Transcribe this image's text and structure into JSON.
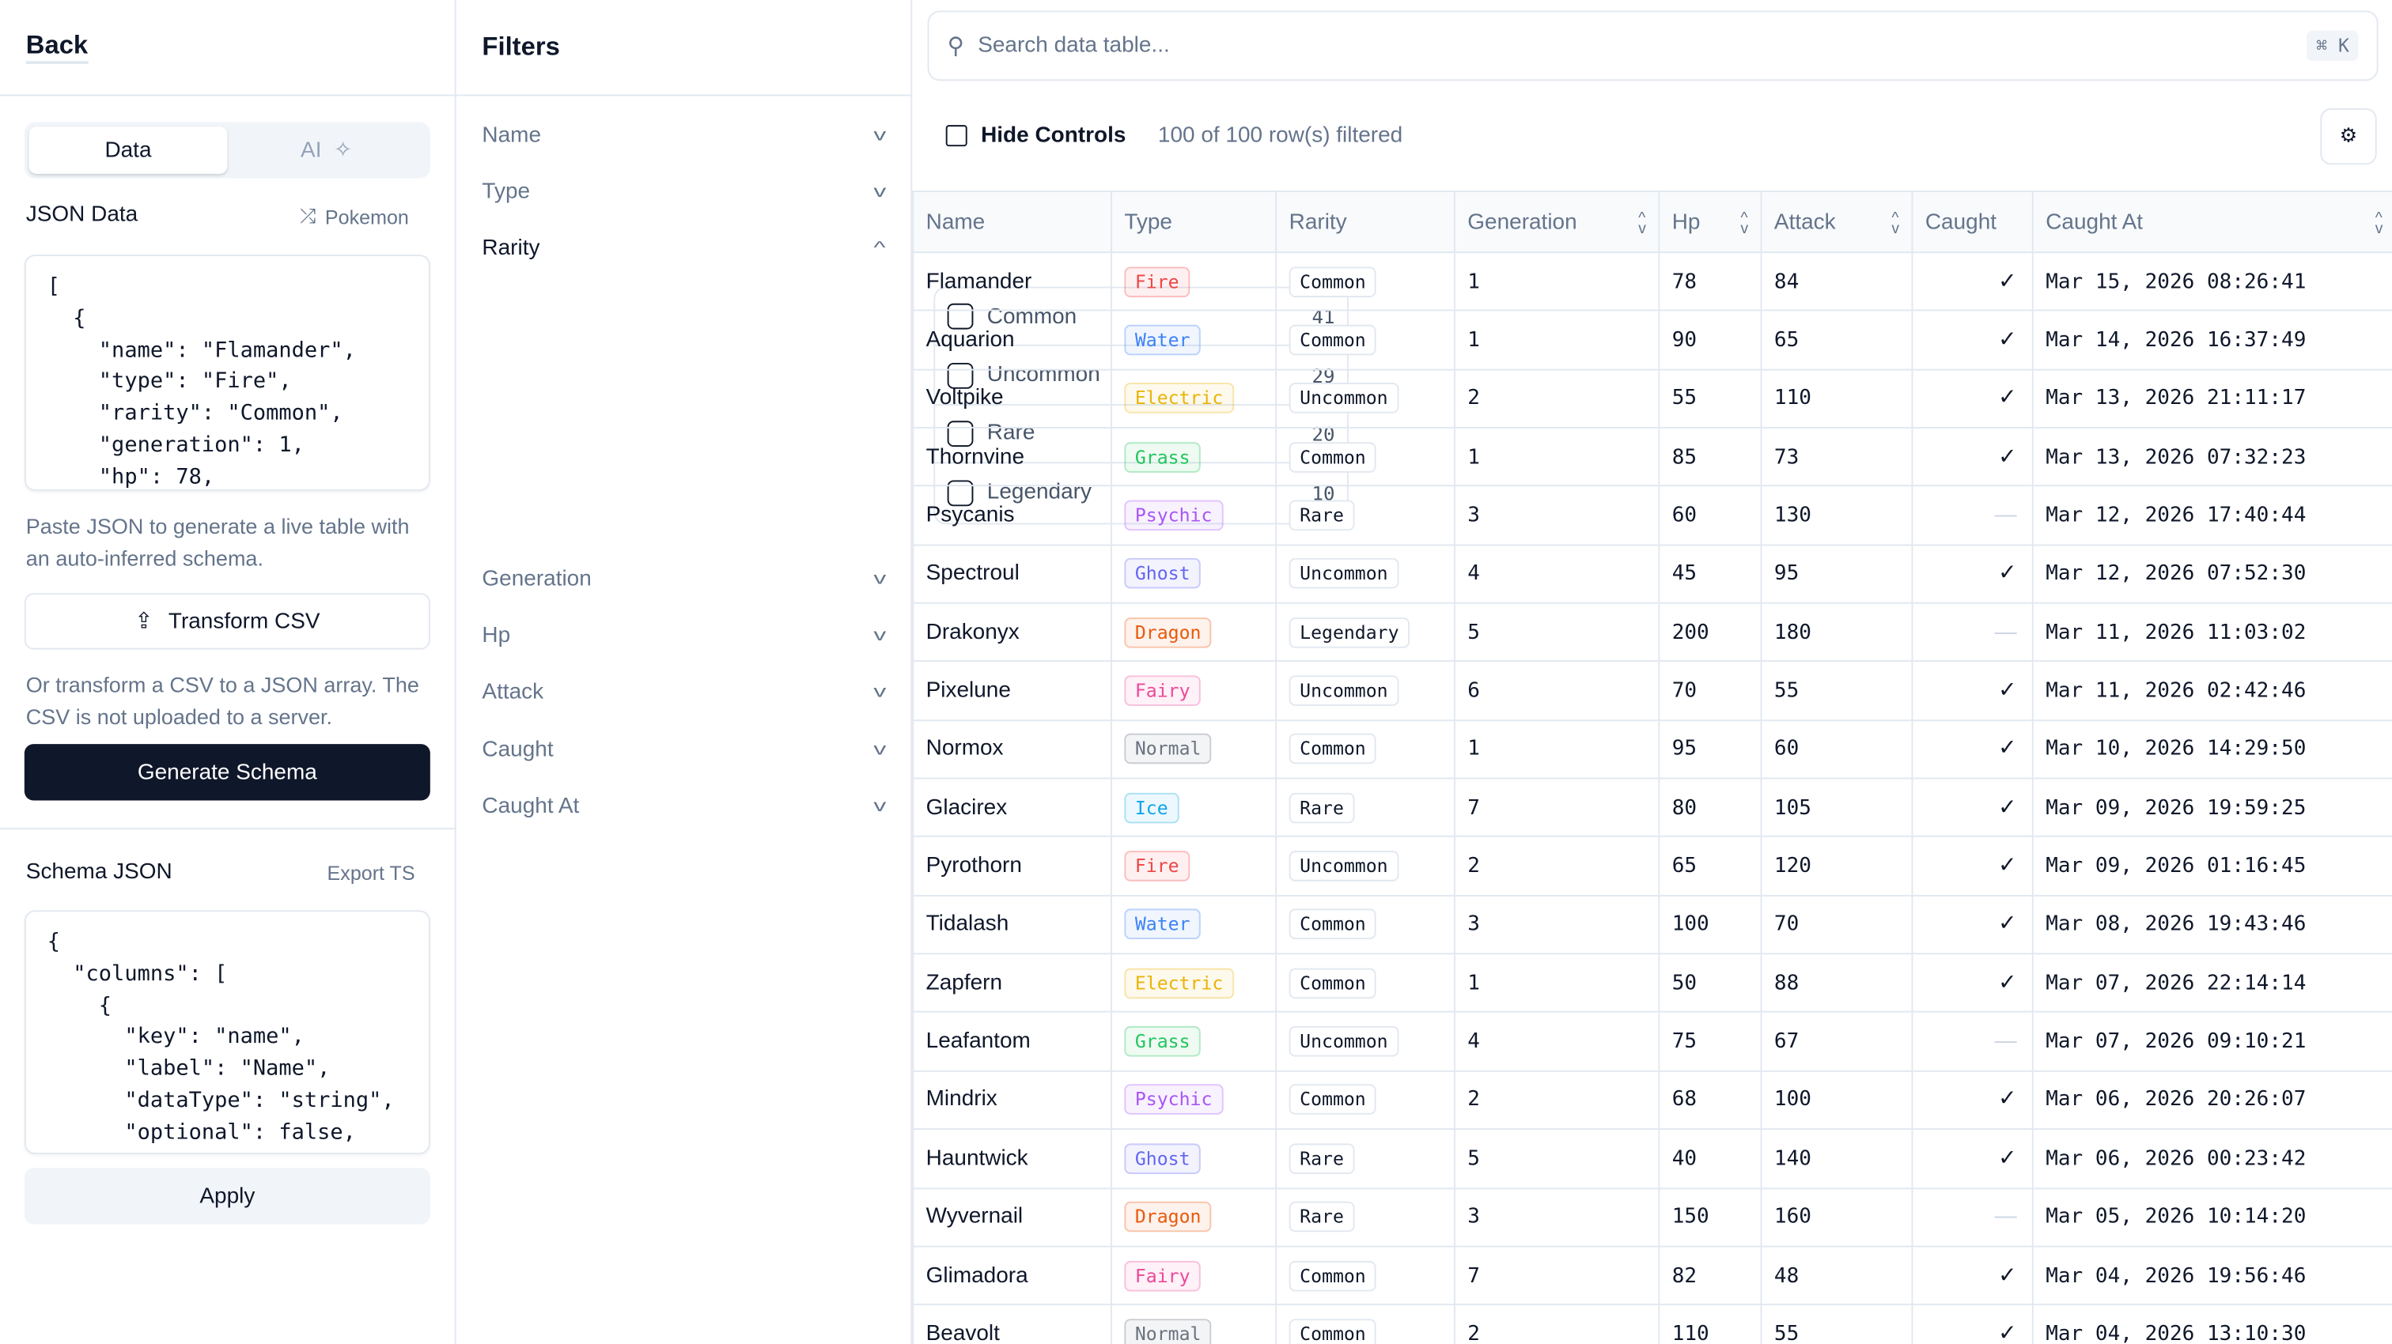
{
  "left": {
    "back": "Back",
    "tabs": {
      "data": "Data",
      "ai": "AI"
    },
    "json_label": "JSON Data",
    "sample_link": "Pokemon",
    "json_text": "[\n  {\n    \"name\": \"Flamander\",\n    \"type\": \"Fire\",\n    \"rarity\": \"Common\",\n    \"generation\": 1,\n    \"hp\": 78,",
    "paste_help": "Paste JSON to generate a live table with an auto-inferred schema.",
    "transform_csv": "Transform CSV",
    "csv_help": "Or transform a CSV to a JSON array. The CSV is not uploaded to a server.",
    "generate": "Generate Schema",
    "schema_label": "Schema JSON",
    "export": "Export TS",
    "schema_text": "{\n  \"columns\": [\n    {\n      \"key\": \"name\",\n      \"label\": \"Name\",\n      \"dataType\": \"string\",\n      \"optional\": false,",
    "apply": "Apply"
  },
  "filters": {
    "title": "Filters",
    "items": [
      "Name",
      "Type",
      "Rarity",
      "Generation",
      "Hp",
      "Attack",
      "Caught",
      "Caught At"
    ],
    "rarity_options": [
      {
        "label": "Common",
        "count": "41"
      },
      {
        "label": "Uncommon",
        "count": "29"
      },
      {
        "label": "Rare",
        "count": "20"
      },
      {
        "label": "Legendary",
        "count": "10"
      }
    ]
  },
  "main": {
    "search_placeholder": "Search data table...",
    "shortcut": "⌘ K",
    "hide_controls": "Hide Controls",
    "row_count": "100 of 100 row(s) filtered",
    "columns": [
      "Name",
      "Type",
      "Rarity",
      "Generation",
      "Hp",
      "Attack",
      "Caught",
      "Caught At"
    ],
    "type_colors": {
      "Fire": "#ef4444",
      "Water": "#3b82f6",
      "Electric": "#eab308",
      "Grass": "#22c55e",
      "Psychic": "#a855f7",
      "Ghost": "#6366f1",
      "Dragon": "#ea580c",
      "Fairy": "#ec4899",
      "Normal": "#6b7280",
      "Ice": "#0ea5e9"
    },
    "rows": [
      [
        "Flamander",
        "Fire",
        "Common",
        "1",
        "78",
        "84",
        true,
        "Mar 15, 2026 08:26:41"
      ],
      [
        "Aquarion",
        "Water",
        "Common",
        "1",
        "90",
        "65",
        true,
        "Mar 14, 2026 16:37:49"
      ],
      [
        "Voltpike",
        "Electric",
        "Uncommon",
        "2",
        "55",
        "110",
        true,
        "Mar 13, 2026 21:11:17"
      ],
      [
        "Thornvine",
        "Grass",
        "Common",
        "1",
        "85",
        "73",
        true,
        "Mar 13, 2026 07:32:23"
      ],
      [
        "Psycanis",
        "Psychic",
        "Rare",
        "3",
        "60",
        "130",
        false,
        "Mar 12, 2026 17:40:44"
      ],
      [
        "Spectroul",
        "Ghost",
        "Uncommon",
        "4",
        "45",
        "95",
        true,
        "Mar 12, 2026 07:52:30"
      ],
      [
        "Drakonyx",
        "Dragon",
        "Legendary",
        "5",
        "200",
        "180",
        false,
        "Mar 11, 2026 11:03:02"
      ],
      [
        "Pixelune",
        "Fairy",
        "Uncommon",
        "6",
        "70",
        "55",
        true,
        "Mar 11, 2026 02:42:46"
      ],
      [
        "Normox",
        "Normal",
        "Common",
        "1",
        "95",
        "60",
        true,
        "Mar 10, 2026 14:29:50"
      ],
      [
        "Glacirex",
        "Ice",
        "Rare",
        "7",
        "80",
        "105",
        true,
        "Mar 09, 2026 19:59:25"
      ],
      [
        "Pyrothorn",
        "Fire",
        "Uncommon",
        "2",
        "65",
        "120",
        true,
        "Mar 09, 2026 01:16:45"
      ],
      [
        "Tidalash",
        "Water",
        "Common",
        "3",
        "100",
        "70",
        true,
        "Mar 08, 2026 19:43:46"
      ],
      [
        "Zapfern",
        "Electric",
        "Common",
        "1",
        "50",
        "88",
        true,
        "Mar 07, 2026 22:14:14"
      ],
      [
        "Leafantom",
        "Grass",
        "Uncommon",
        "4",
        "75",
        "67",
        false,
        "Mar 07, 2026 09:10:21"
      ],
      [
        "Mindrix",
        "Psychic",
        "Common",
        "2",
        "68",
        "100",
        true,
        "Mar 06, 2026 20:26:07"
      ],
      [
        "Hauntwick",
        "Ghost",
        "Rare",
        "5",
        "40",
        "140",
        true,
        "Mar 06, 2026 00:23:42"
      ],
      [
        "Wyvernail",
        "Dragon",
        "Rare",
        "3",
        "150",
        "160",
        false,
        "Mar 05, 2026 10:14:20"
      ],
      [
        "Glimadora",
        "Fairy",
        "Common",
        "7",
        "82",
        "48",
        true,
        "Mar 04, 2026 19:56:46"
      ],
      [
        "Beavolt",
        "Normal",
        "Common",
        "2",
        "110",
        "55",
        true,
        "Mar 04, 2026 13:10:30"
      ]
    ]
  }
}
